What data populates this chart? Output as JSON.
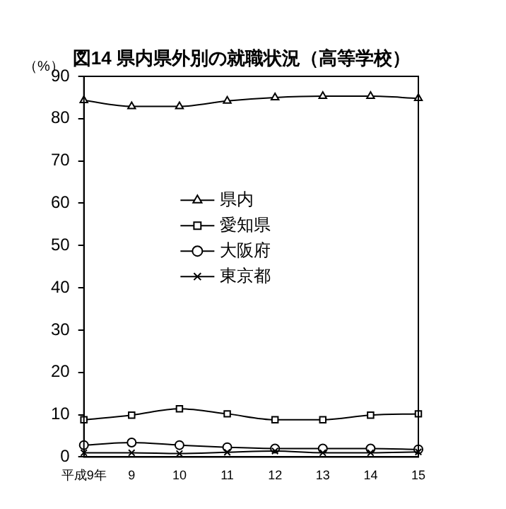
{
  "chart_data": {
    "type": "line",
    "title": "図14 県内県外別の就職状況（高等学校）",
    "ylabel": "（%）",
    "categories": [
      "平成9年",
      "9",
      "10",
      "11",
      "12",
      "13",
      "14",
      "15"
    ],
    "series": [
      {
        "name": "県内",
        "color": "#000000",
        "marker": "triangle",
        "values": [
          84.3,
          82.9,
          82.9,
          84.2,
          85.0,
          85.3,
          85.3,
          84.8
        ]
      },
      {
        "name": "愛知県",
        "color": "#000000",
        "marker": "square",
        "values": [
          8.8,
          9.9,
          11.4,
          10.2,
          8.8,
          8.8,
          9.9,
          10.2
        ]
      },
      {
        "name": "大阪府",
        "color": "#000000",
        "marker": "circle",
        "values": [
          2.8,
          3.4,
          2.8,
          2.3,
          2.0,
          2.0,
          2.0,
          1.8
        ]
      },
      {
        "name": "東京都",
        "color": "#000000",
        "marker": "cross",
        "values": [
          1.0,
          1.0,
          0.8,
          1.1,
          1.4,
          1.0,
          1.0,
          1.2
        ]
      }
    ],
    "ylim": [
      0,
      90
    ],
    "yticks": [
      0,
      10,
      20,
      30,
      40,
      50,
      60,
      70,
      80,
      90
    ],
    "grid": false,
    "legend": "center"
  }
}
